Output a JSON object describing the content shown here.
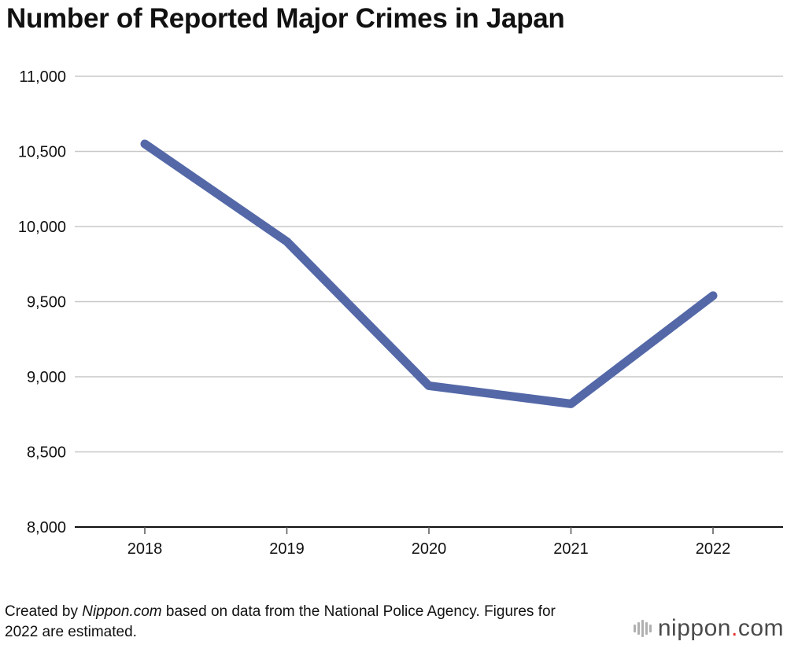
{
  "chart_data": {
    "type": "line",
    "title": "Number of Reported Major Crimes in Japan",
    "categories": [
      "2018",
      "2019",
      "2020",
      "2021",
      "2022"
    ],
    "series": [
      {
        "values": [
          10550,
          9900,
          8940,
          8820,
          9540
        ],
        "color": "#5468a8"
      }
    ],
    "ylim": [
      8000,
      11000
    ],
    "yticks": [
      8000,
      8500,
      9000,
      9500,
      10000,
      10500,
      11000
    ],
    "ytick_labels": [
      "8,000",
      "8,500",
      "9,000",
      "9,500",
      "10,000",
      "10,500",
      "11,000"
    ],
    "grid": true
  },
  "footer": {
    "prefix": "Created by ",
    "source": "Nippon.com",
    "suffix": " based on data from the National Police Agency. Figures for 2022 are estimated."
  },
  "logo": {
    "name": "nippon",
    "dot": ".",
    "tld": "com"
  }
}
